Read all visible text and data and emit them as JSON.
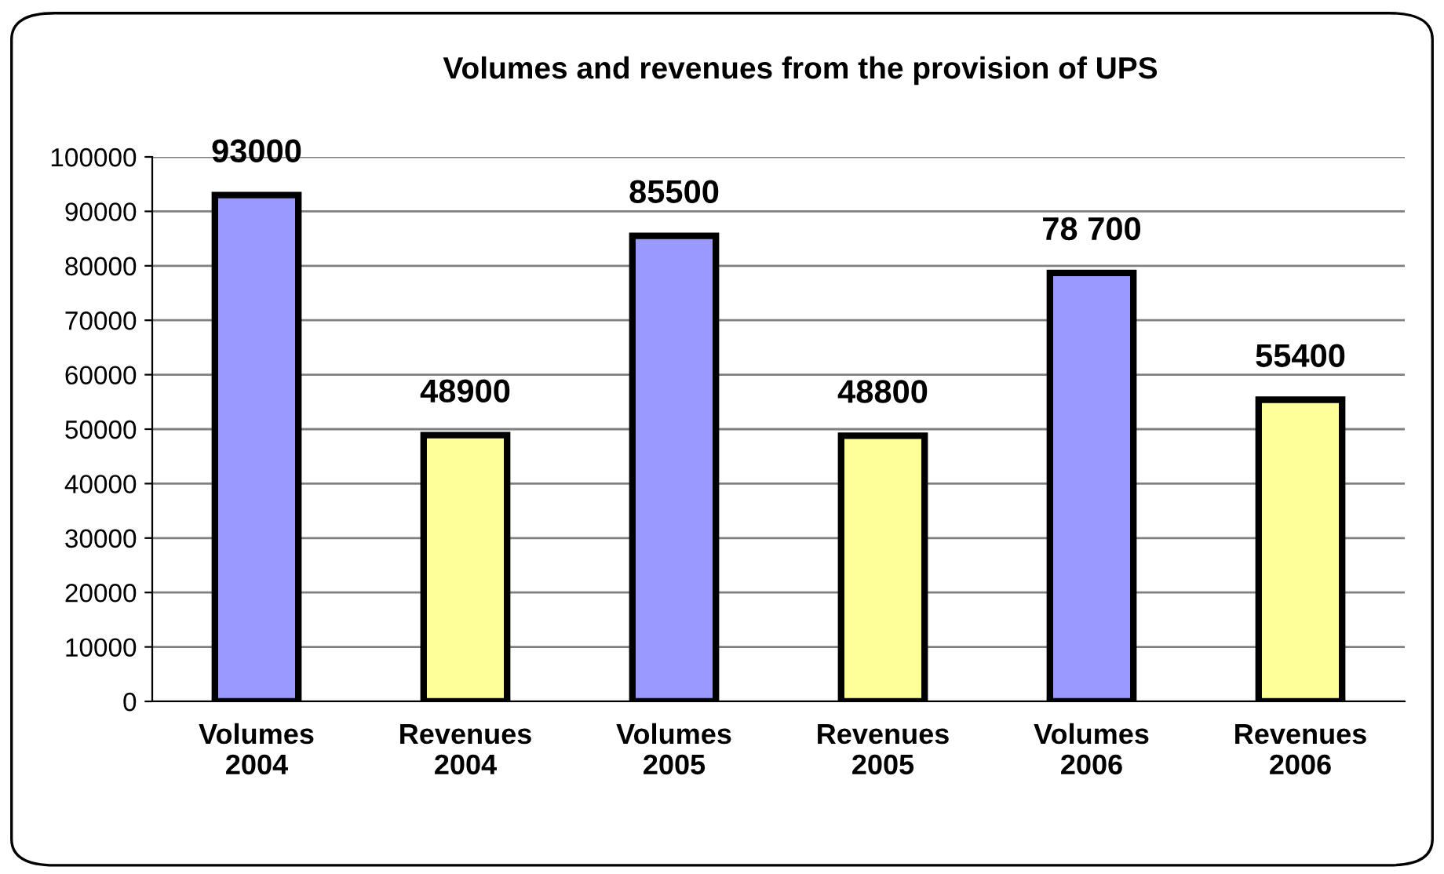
{
  "chart_data": {
    "type": "bar",
    "title": "Volumes and revenues from the provision of UPS",
    "categories": [
      "Volumes\n2004",
      "Revenues\n2004",
      "Volumes\n2005",
      "Revenues\n2005",
      "Volumes\n2006",
      "Revenues\n2006"
    ],
    "values": [
      93000,
      48900,
      85500,
      48800,
      78700,
      55400
    ],
    "colors": [
      "#9999ff",
      "#ffff99",
      "#9999ff",
      "#ffff99",
      "#9999ff",
      "#ffff99"
    ],
    "value_labels": [
      "93000",
      "48900",
      "85500",
      "48800",
      "78 700",
      "55400"
    ],
    "ylim": [
      0,
      100000
    ],
    "yticks": [
      0,
      10000,
      20000,
      30000,
      40000,
      50000,
      60000,
      70000,
      80000,
      90000,
      100000
    ],
    "grid": "y"
  }
}
